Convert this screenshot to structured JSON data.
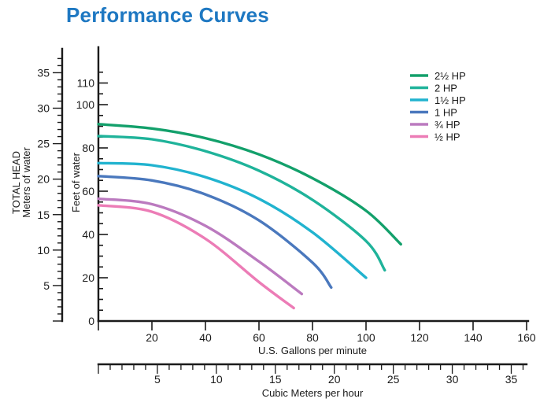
{
  "page_title": "Performance Curves",
  "chart_data": {
    "type": "line",
    "title": "Performance Curves",
    "xlabel": "U.S. Gallons per minute",
    "xlabel_secondary": "Cubic Meters per hour",
    "ylabel": "Feet of water",
    "ylabel_secondary": [
      "TOTAL HEAD",
      "Meters of water"
    ],
    "xlim": [
      0,
      160
    ],
    "ylim": [
      0,
      120
    ],
    "x_ticks": [
      20,
      40,
      60,
      80,
      100,
      120,
      140,
      160
    ],
    "y_ticks": [
      0,
      20,
      40,
      60,
      80,
      100,
      110
    ],
    "x_secondary_ticks": [
      5,
      10,
      15,
      20,
      25,
      30,
      35
    ],
    "y_secondary_ticks": [
      5,
      10,
      15,
      20,
      25,
      30,
      35
    ],
    "x_secondary_lim": [
      0,
      36.3
    ],
    "y_secondary_lim": [
      0,
      36.6
    ],
    "grid": false,
    "legend_position": "top-right",
    "series": [
      {
        "name": "2½ HP",
        "color": "#13a06b",
        "points": [
          [
            0,
            91
          ],
          [
            20,
            89
          ],
          [
            40,
            84.5
          ],
          [
            60,
            77
          ],
          [
            80,
            66
          ],
          [
            100,
            51
          ],
          [
            113,
            35.5
          ]
        ]
      },
      {
        "name": "2 HP",
        "color": "#1fb39a",
        "points": [
          [
            0,
            85.5
          ],
          [
            20,
            84
          ],
          [
            40,
            78.5
          ],
          [
            60,
            69.5
          ],
          [
            80,
            56
          ],
          [
            100,
            37
          ],
          [
            107,
            23.5
          ]
        ]
      },
      {
        "name": "1½ HP",
        "color": "#21b3cf",
        "points": [
          [
            0,
            73
          ],
          [
            20,
            72
          ],
          [
            40,
            66.5
          ],
          [
            60,
            56.5
          ],
          [
            80,
            41
          ],
          [
            100,
            20
          ]
        ]
      },
      {
        "name": "1 HP",
        "color": "#4a78bd",
        "points": [
          [
            0,
            67
          ],
          [
            20,
            65
          ],
          [
            40,
            58.5
          ],
          [
            60,
            46.5
          ],
          [
            80,
            27
          ],
          [
            87,
            15.5
          ]
        ]
      },
      {
        "name": "¾ HP",
        "color": "#bb7abf",
        "points": [
          [
            0,
            56.5
          ],
          [
            20,
            54
          ],
          [
            40,
            44
          ],
          [
            60,
            27.5
          ],
          [
            76,
            12.5
          ]
        ]
      },
      {
        "name": "½ HP",
        "color": "#ec7cb6",
        "points": [
          [
            0,
            53.5
          ],
          [
            20,
            50.5
          ],
          [
            40,
            38
          ],
          [
            60,
            18
          ],
          [
            73,
            6
          ]
        ]
      }
    ]
  }
}
